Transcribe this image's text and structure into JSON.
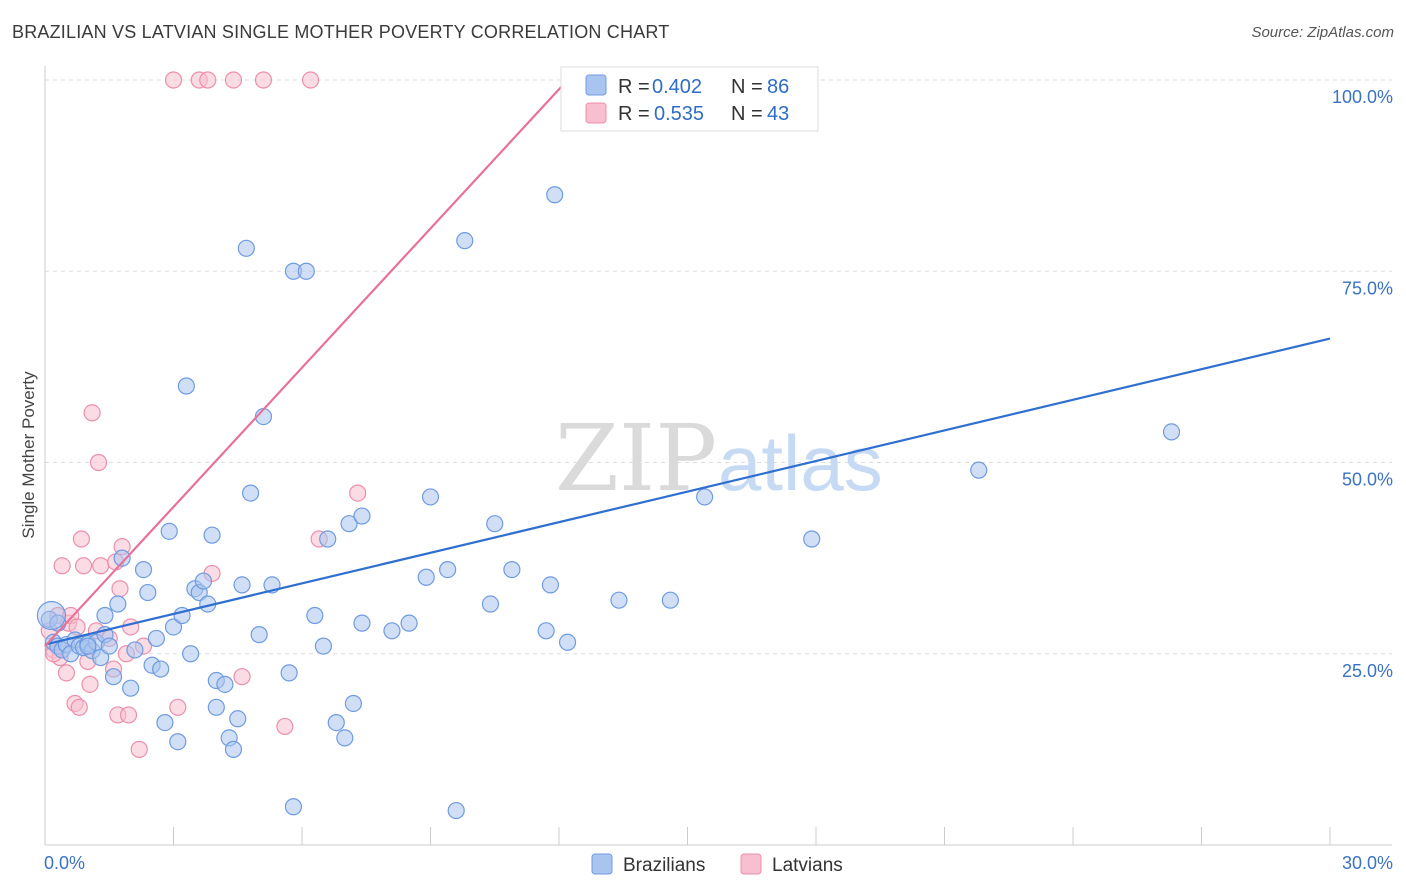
{
  "title": "BRAZILIAN VS LATVIAN SINGLE MOTHER POVERTY CORRELATION CHART",
  "source": "Source: ZipAtlas.com",
  "watermark": {
    "zip": "ZIP",
    "atlas": "atlas"
  },
  "colors": {
    "blue_fill": "#a9c4ee",
    "blue_stroke": "#6f9be0",
    "blue_line": "#2f6fd0",
    "pink_fill": "#f7bfcf",
    "pink_stroke": "#ec8faa",
    "pink_line": "#e8719a",
    "grid": "#dddddd",
    "tick_text": "#3a72c4"
  },
  "legend": {
    "r_label": "R =",
    "n_label": "N =",
    "items": [
      {
        "r": "0.402",
        "n": "86",
        "color": "blue"
      },
      {
        "r": "0.535",
        "n": "43",
        "color": "pink"
      }
    ]
  },
  "chart_data": {
    "type": "scatter",
    "ylabel": "Single Mother Poverty",
    "xlim": [
      0,
      30
    ],
    "ylim": [
      0,
      100
    ],
    "x_ticks": [
      "0.0%",
      "30.0%"
    ],
    "y_ticks": [
      "25.0%",
      "50.0%",
      "75.0%",
      "100.0%"
    ],
    "y_tick_values": [
      25,
      50,
      75,
      100
    ],
    "grid": "horizontal dashed",
    "series": [
      {
        "name": "Brazilians",
        "color": "blue",
        "trend": {
          "x0": 0,
          "y0": 26.2,
          "x1": 30,
          "y1": 66.2
        },
        "points": [
          [
            0.1,
            29.5
          ],
          [
            0.2,
            26.5
          ],
          [
            0.3,
            26.0
          ],
          [
            0.4,
            25.5
          ],
          [
            0.5,
            26.2
          ],
          [
            0.6,
            25.0
          ],
          [
            0.7,
            26.8
          ],
          [
            0.8,
            26.0
          ],
          [
            0.9,
            25.8
          ],
          [
            1.0,
            26.3
          ],
          [
            1.1,
            25.4
          ],
          [
            1.2,
            26.5
          ],
          [
            1.3,
            24.5
          ],
          [
            1.4,
            27.5
          ],
          [
            1.5,
            26.0
          ],
          [
            1.6,
            22.0
          ],
          [
            1.7,
            31.5
          ],
          [
            1.8,
            37.5
          ],
          [
            1.4,
            30.0
          ],
          [
            2.0,
            20.5
          ],
          [
            2.1,
            25.5
          ],
          [
            2.3,
            36.0
          ],
          [
            2.4,
            33.0
          ],
          [
            2.5,
            23.5
          ],
          [
            2.6,
            27.0
          ],
          [
            2.7,
            23.0
          ],
          [
            2.8,
            16.0
          ],
          [
            2.9,
            41.0
          ],
          [
            3.0,
            28.5
          ],
          [
            3.1,
            13.5
          ],
          [
            3.2,
            30.0
          ],
          [
            3.3,
            60.0
          ],
          [
            3.4,
            25.0
          ],
          [
            3.5,
            33.5
          ],
          [
            3.6,
            33.0
          ],
          [
            3.7,
            34.5
          ],
          [
            3.8,
            31.5
          ],
          [
            3.9,
            40.5
          ],
          [
            4.0,
            21.5
          ],
          [
            4.0,
            18.0
          ],
          [
            4.2,
            21.0
          ],
          [
            4.3,
            14.0
          ],
          [
            4.4,
            12.5
          ],
          [
            4.5,
            16.5
          ],
          [
            4.6,
            34.0
          ],
          [
            4.7,
            78.0
          ],
          [
            4.8,
            46.0
          ],
          [
            5.0,
            27.5
          ],
          [
            5.1,
            56.0
          ],
          [
            5.3,
            34.0
          ],
          [
            5.7,
            22.5
          ],
          [
            5.8,
            5.0
          ],
          [
            5.8,
            75.0
          ],
          [
            6.1,
            75.0
          ],
          [
            6.3,
            30.0
          ],
          [
            6.5,
            26.0
          ],
          [
            6.6,
            40.0
          ],
          [
            6.8,
            16.0
          ],
          [
            7.0,
            14.0
          ],
          [
            7.1,
            42.0
          ],
          [
            7.2,
            18.5
          ],
          [
            7.4,
            43.0
          ],
          [
            7.4,
            29.0
          ],
          [
            8.1,
            28.0
          ],
          [
            8.5,
            29.0
          ],
          [
            8.9,
            35.0
          ],
          [
            9.0,
            45.5
          ],
          [
            9.4,
            36.0
          ],
          [
            9.6,
            4.5
          ],
          [
            9.8,
            79.0
          ],
          [
            10.4,
            31.5
          ],
          [
            10.5,
            42.0
          ],
          [
            10.9,
            36.0
          ],
          [
            11.7,
            28.0
          ],
          [
            11.8,
            34.0
          ],
          [
            11.9,
            85.0
          ],
          [
            12.2,
            26.5
          ],
          [
            13.4,
            32.0
          ],
          [
            14.6,
            32.0
          ],
          [
            15.4,
            45.5
          ],
          [
            17.7,
            100.0
          ],
          [
            17.9,
            40.0
          ],
          [
            21.8,
            49.0
          ],
          [
            26.3,
            54.0
          ],
          [
            1.0,
            26.0
          ],
          [
            0.3,
            29.0
          ]
        ]
      },
      {
        "name": "Latvians",
        "color": "pink",
        "trend": {
          "x0": 0,
          "y0": 26.0,
          "x1": 12.2,
          "y1": 100.0
        },
        "points": [
          [
            0.1,
            28.0
          ],
          [
            0.2,
            25.5
          ],
          [
            0.3,
            30.0
          ],
          [
            0.35,
            24.5
          ],
          [
            0.4,
            36.5
          ],
          [
            0.5,
            22.5
          ],
          [
            0.55,
            29.0
          ],
          [
            0.6,
            30.0
          ],
          [
            0.7,
            18.5
          ],
          [
            0.75,
            28.5
          ],
          [
            0.8,
            18.0
          ],
          [
            0.85,
            40.0
          ],
          [
            0.9,
            36.5
          ],
          [
            1.0,
            24.0
          ],
          [
            1.05,
            21.0
          ],
          [
            1.1,
            56.5
          ],
          [
            1.2,
            28.0
          ],
          [
            1.25,
            50.0
          ],
          [
            1.3,
            36.5
          ],
          [
            1.5,
            27.0
          ],
          [
            1.6,
            23.0
          ],
          [
            1.65,
            37.0
          ],
          [
            1.7,
            17.0
          ],
          [
            1.75,
            33.5
          ],
          [
            1.8,
            39.0
          ],
          [
            1.9,
            25.0
          ],
          [
            1.95,
            17.0
          ],
          [
            2.0,
            28.5
          ],
          [
            2.2,
            12.5
          ],
          [
            2.3,
            26.0
          ],
          [
            3.0,
            100.0
          ],
          [
            3.1,
            18.0
          ],
          [
            3.6,
            100.0
          ],
          [
            3.8,
            100.0
          ],
          [
            3.9,
            35.5
          ],
          [
            4.4,
            100.0
          ],
          [
            4.6,
            22.0
          ],
          [
            5.1,
            100.0
          ],
          [
            5.6,
            15.5
          ],
          [
            6.2,
            100.0
          ],
          [
            6.4,
            40.0
          ],
          [
            7.3,
            46.0
          ],
          [
            0.2,
            25.0
          ]
        ]
      }
    ]
  }
}
